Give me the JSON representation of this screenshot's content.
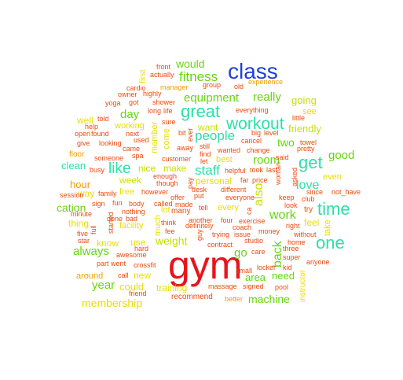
{
  "cloud": {
    "palette": {
      "red": "#e8141c",
      "blue": "#1f3fdc",
      "teal": "#2be1a8",
      "green": "#66d60c",
      "lime": "#c6e000",
      "yellow": "#e8df00",
      "orange": "#f0a000",
      "redorange": "#ee4a0c"
    },
    "words": [
      {
        "text": "gym",
        "color": "red"
      },
      {
        "text": "class",
        "color": "blue"
      },
      {
        "text": "workout",
        "color": "teal"
      },
      {
        "text": "time",
        "color": "teal"
      },
      {
        "text": "one",
        "color": "teal"
      },
      {
        "text": "get",
        "color": "teal"
      },
      {
        "text": "great",
        "color": "teal"
      },
      {
        "text": "fitness",
        "color": "green"
      },
      {
        "text": "would",
        "color": "green"
      },
      {
        "text": "people",
        "color": "teal"
      },
      {
        "text": "like",
        "color": "teal"
      },
      {
        "text": "staff",
        "color": "teal"
      },
      {
        "text": "equipment",
        "color": "green"
      },
      {
        "text": "really",
        "color": "green"
      },
      {
        "text": "room",
        "color": "green"
      },
      {
        "text": "also",
        "color": "lime"
      },
      {
        "text": "work",
        "color": "green"
      },
      {
        "text": "love",
        "color": "teal"
      },
      {
        "text": "good",
        "color": "green"
      },
      {
        "text": "two",
        "color": "green"
      },
      {
        "text": "day",
        "color": "green"
      },
      {
        "text": "go",
        "color": "green"
      },
      {
        "text": "always",
        "color": "green"
      },
      {
        "text": "year",
        "color": "green"
      },
      {
        "text": "back",
        "color": "green"
      },
      {
        "text": "going",
        "color": "lime"
      },
      {
        "text": "friendly",
        "color": "lime"
      },
      {
        "text": "clean",
        "color": "teal"
      },
      {
        "text": "cation",
        "color": "green"
      },
      {
        "text": "hour",
        "color": "orange"
      },
      {
        "text": "weight",
        "color": "lime"
      },
      {
        "text": "area",
        "color": "green"
      },
      {
        "text": "need",
        "color": "green"
      },
      {
        "text": "machine",
        "color": "green"
      },
      {
        "text": "membership",
        "color": "yellow"
      },
      {
        "text": "new",
        "color": "yellow"
      },
      {
        "text": "could",
        "color": "yellow"
      },
      {
        "text": "training",
        "color": "yellow"
      },
      {
        "text": "week",
        "color": "lime"
      },
      {
        "text": "nice",
        "color": "lime"
      },
      {
        "text": "make",
        "color": "lime"
      },
      {
        "text": "want",
        "color": "lime"
      },
      {
        "text": "first",
        "color": "yellow"
      },
      {
        "text": "member",
        "color": "yellow"
      },
      {
        "text": "come",
        "color": "yellow"
      },
      {
        "text": "feel",
        "color": "yellow"
      },
      {
        "text": "even",
        "color": "yellow"
      },
      {
        "text": "take",
        "color": "yellow"
      },
      {
        "text": "much",
        "color": "yellow"
      },
      {
        "text": "facility",
        "color": "yellow"
      },
      {
        "text": "thing",
        "color": "yellow"
      },
      {
        "text": "way",
        "color": "yellow"
      },
      {
        "text": "use",
        "color": "yellow"
      },
      {
        "text": "know",
        "color": "yellow"
      },
      {
        "text": "instructor",
        "color": "yellow"
      },
      {
        "text": "free",
        "color": "yellow"
      },
      {
        "text": "personal",
        "color": "yellow"
      },
      {
        "text": "best",
        "color": "yellow"
      },
      {
        "text": "working",
        "color": "yellow"
      },
      {
        "text": "around",
        "color": "orange"
      },
      {
        "text": "well",
        "color": "yellow"
      },
      {
        "text": "see",
        "color": "yellow"
      },
      {
        "text": "lot",
        "color": "yellow"
      },
      {
        "text": "every",
        "color": "yellow"
      },
      {
        "text": "floor",
        "color": "orange"
      },
      {
        "text": "session",
        "color": "redorange"
      },
      {
        "text": "busy",
        "color": "redorange"
      },
      {
        "text": "family",
        "color": "redorange"
      },
      {
        "text": "sign",
        "color": "redorange"
      },
      {
        "text": "fun",
        "color": "redorange"
      },
      {
        "text": "body",
        "color": "redorange"
      },
      {
        "text": "minute",
        "color": "redorange"
      },
      {
        "text": "five",
        "color": "redorange"
      },
      {
        "text": "star",
        "color": "redorange"
      },
      {
        "text": "part",
        "color": "redorange"
      },
      {
        "text": "went",
        "color": "redorange"
      },
      {
        "text": "call",
        "color": "redorange"
      },
      {
        "text": "friend",
        "color": "redorange"
      },
      {
        "text": "recommend",
        "color": "redorange"
      },
      {
        "text": "better",
        "color": "orange"
      },
      {
        "text": "manager",
        "color": "orange"
      },
      {
        "text": "cardio",
        "color": "redorange"
      },
      {
        "text": "owner",
        "color": "redorange"
      },
      {
        "text": "yoga",
        "color": "redorange"
      },
      {
        "text": "front",
        "color": "redorange"
      },
      {
        "text": "actually",
        "color": "redorange"
      },
      {
        "text": "highly",
        "color": "redorange"
      },
      {
        "text": "got",
        "color": "redorange"
      },
      {
        "text": "shower",
        "color": "redorange"
      },
      {
        "text": "long",
        "color": "redorange"
      },
      {
        "text": "life",
        "color": "redorange"
      },
      {
        "text": "told",
        "color": "redorange"
      },
      {
        "text": "help",
        "color": "redorange"
      },
      {
        "text": "open",
        "color": "redorange"
      },
      {
        "text": "found",
        "color": "redorange"
      },
      {
        "text": "next",
        "color": "redorange"
      },
      {
        "text": "give",
        "color": "redorange"
      },
      {
        "text": "looking",
        "color": "redorange"
      },
      {
        "text": "used",
        "color": "redorange"
      },
      {
        "text": "came",
        "color": "redorange"
      },
      {
        "text": "someone",
        "color": "redorange"
      },
      {
        "text": "spa",
        "color": "redorange"
      },
      {
        "text": "sure",
        "color": "redorange"
      },
      {
        "text": "bit",
        "color": "redorange"
      },
      {
        "text": "ever",
        "color": "redorange"
      },
      {
        "text": "away",
        "color": "redorange"
      },
      {
        "text": "still",
        "color": "redorange"
      },
      {
        "text": "find",
        "color": "redorange"
      },
      {
        "text": "customer",
        "color": "redorange"
      },
      {
        "text": "let",
        "color": "redorange"
      },
      {
        "text": "enough",
        "color": "redorange"
      },
      {
        "text": "though",
        "color": "redorange"
      },
      {
        "text": "however",
        "color": "redorange"
      },
      {
        "text": "called",
        "color": "redorange"
      },
      {
        "text": "offer",
        "color": "redorange"
      },
      {
        "text": "made",
        "color": "redorange"
      },
      {
        "text": "nothing",
        "color": "redorange"
      },
      {
        "text": "done",
        "color": "redorange"
      },
      {
        "text": "bad",
        "color": "redorange"
      },
      {
        "text": "started",
        "color": "redorange"
      },
      {
        "text": "full",
        "color": "redorange"
      },
      {
        "text": "hard",
        "color": "redorange"
      },
      {
        "text": "awesome",
        "color": "redorange"
      },
      {
        "text": "crossfit",
        "color": "redorange"
      },
      {
        "text": "many",
        "color": "redorange"
      },
      {
        "text": "think",
        "color": "redorange"
      },
      {
        "text": "fee",
        "color": "redorange"
      },
      {
        "text": "definitely",
        "color": "redorange"
      },
      {
        "text": "guy",
        "color": "redorange"
      },
      {
        "text": "pay",
        "color": "redorange"
      },
      {
        "text": "put",
        "color": "redorange"
      },
      {
        "text": "desk",
        "color": "redorange"
      },
      {
        "text": "tell",
        "color": "redorange"
      },
      {
        "text": "another",
        "color": "redorange"
      },
      {
        "text": "four",
        "color": "redorange"
      },
      {
        "text": "trying",
        "color": "redorange"
      },
      {
        "text": "issue",
        "color": "redorange"
      },
      {
        "text": "contract",
        "color": "redorange"
      },
      {
        "text": "massage",
        "color": "redorange"
      },
      {
        "text": "signed",
        "color": "redorange"
      },
      {
        "text": "small",
        "color": "redorange"
      },
      {
        "text": "locker",
        "color": "redorange"
      },
      {
        "text": "kid",
        "color": "redorange"
      },
      {
        "text": "pool",
        "color": "redorange"
      },
      {
        "text": "three",
        "color": "redorange"
      },
      {
        "text": "super",
        "color": "redorange"
      },
      {
        "text": "anyone",
        "color": "redorange"
      },
      {
        "text": "home",
        "color": "redorange"
      },
      {
        "text": "without",
        "color": "redorange"
      },
      {
        "text": "money",
        "color": "redorange"
      },
      {
        "text": "care",
        "color": "redorange"
      },
      {
        "text": "studio",
        "color": "redorange"
      },
      {
        "text": "coach",
        "color": "redorange"
      },
      {
        "text": "exercise",
        "color": "redorange"
      },
      {
        "text": "different",
        "color": "redorange"
      },
      {
        "text": "everyone",
        "color": "redorange"
      },
      {
        "text": "ca",
        "color": "redorange"
      },
      {
        "text": "far",
        "color": "redorange"
      },
      {
        "text": "price",
        "color": "redorange"
      },
      {
        "text": "helpful",
        "color": "redorange"
      },
      {
        "text": "took",
        "color": "redorange"
      },
      {
        "text": "last",
        "color": "redorange"
      },
      {
        "text": "wanted",
        "color": "redorange"
      },
      {
        "text": "change",
        "color": "redorange"
      },
      {
        "text": "big",
        "color": "redorange"
      },
      {
        "text": "level",
        "color": "redorange"
      },
      {
        "text": "cancel",
        "color": "redorange"
      },
      {
        "text": "everything",
        "color": "redorange"
      },
      {
        "text": "group",
        "color": "redorange"
      },
      {
        "text": "old",
        "color": "redorange"
      },
      {
        "text": "experience",
        "color": "orange"
      },
      {
        "text": "little",
        "color": "redorange"
      },
      {
        "text": "towel",
        "color": "redorange"
      },
      {
        "text": "pretty",
        "color": "redorange"
      },
      {
        "text": "club",
        "color": "redorange"
      },
      {
        "text": "since",
        "color": "redorange"
      },
      {
        "text": "not_have",
        "color": "redorange"
      },
      {
        "text": "said",
        "color": "redorange"
      },
      {
        "text": "woman",
        "color": "redorange"
      },
      {
        "text": "asked",
        "color": "redorange"
      },
      {
        "text": "keep",
        "color": "redorange"
      },
      {
        "text": "look",
        "color": "redorange"
      },
      {
        "text": "try",
        "color": "redorange"
      },
      {
        "text": "right",
        "color": "redorange"
      }
    ]
  }
}
